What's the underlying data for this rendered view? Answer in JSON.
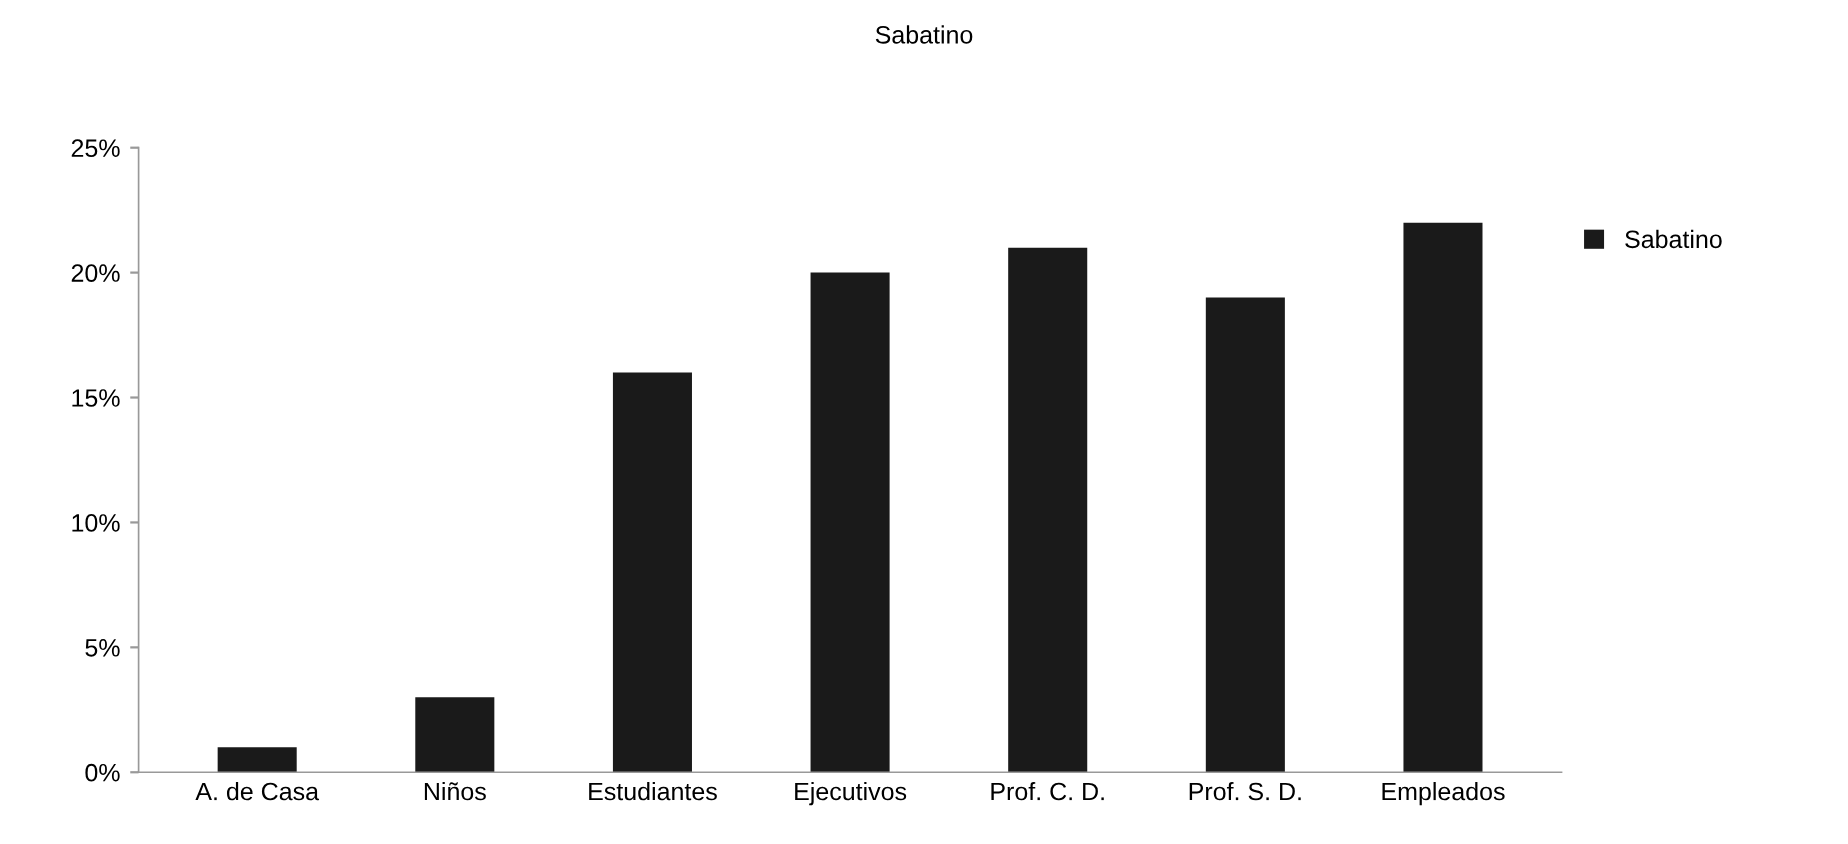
{
  "chart_data": {
    "type": "bar",
    "title": "Sabatino",
    "categories": [
      "A. de Casa",
      "Niños",
      "Estudiantes",
      "Ejecutivos",
      "Prof. C. D.",
      "Prof. S. D.",
      "Empleados"
    ],
    "series": [
      {
        "name": "Sabatino",
        "color": "#1a1a1a",
        "values": [
          1,
          3,
          16,
          20,
          21,
          19,
          22
        ]
      }
    ],
    "ylim": [
      0,
      25
    ],
    "yticks": [
      {
        "value": 0,
        "label": "0%"
      },
      {
        "value": 5,
        "label": "5%"
      },
      {
        "value": 10,
        "label": "10%"
      },
      {
        "value": 15,
        "label": "15%"
      },
      {
        "value": 20,
        "label": "20%"
      },
      {
        "value": 25,
        "label": "25%"
      }
    ],
    "grid": false,
    "legend": "right"
  }
}
